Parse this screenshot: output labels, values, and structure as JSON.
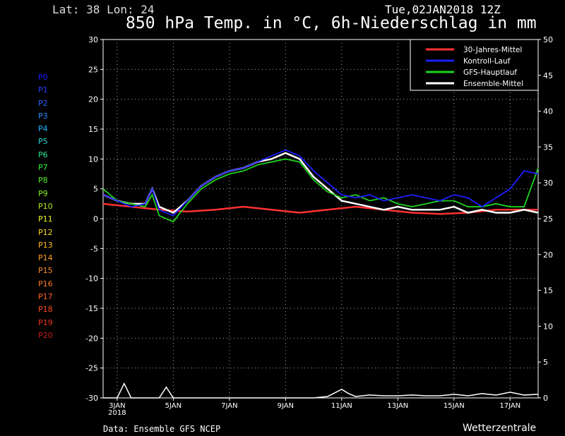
{
  "header": {
    "location": "Lat: 38 Lon: 24",
    "date": "Tue,02JAN2018 12Z",
    "title": "850 hPa Temp. in °C, 6h-Niederschlag in mm"
  },
  "members": [
    {
      "label": "P0",
      "color": "#1e1eff"
    },
    {
      "label": "P1",
      "color": "#2a3cff"
    },
    {
      "label": "P2",
      "color": "#2a64ff"
    },
    {
      "label": "P3",
      "color": "#2a8cff"
    },
    {
      "label": "P4",
      "color": "#22b4ff"
    },
    {
      "label": "P5",
      "color": "#22d2d2"
    },
    {
      "label": "P6",
      "color": "#22e68c"
    },
    {
      "label": "P7",
      "color": "#32f032"
    },
    {
      "label": "P8",
      "color": "#5af02a"
    },
    {
      "label": "P9",
      "color": "#82f01e"
    },
    {
      "label": "P10",
      "color": "#b4f01e"
    },
    {
      "label": "P11",
      "color": "#e6f01e"
    },
    {
      "label": "P12",
      "color": "#ffdc1e"
    },
    {
      "label": "P13",
      "color": "#ffbe1e"
    },
    {
      "label": "P14",
      "color": "#ffa01e"
    },
    {
      "label": "P15",
      "color": "#ff8c1e"
    },
    {
      "label": "P16",
      "color": "#ff781e"
    },
    {
      "label": "P17",
      "color": "#ff641e"
    },
    {
      "label": "P18",
      "color": "#ff4b1e"
    },
    {
      "label": "P19",
      "color": "#f0321e"
    },
    {
      "label": "P20",
      "color": "#c81e1e"
    }
  ],
  "footer": {
    "source": "Data: Ensemble GFS NCEP",
    "brand": "Wetterzentrale"
  },
  "chart_data": {
    "type": "line",
    "title": "850 hPa Temp. in °C, 6h-Niederschlag in mm",
    "xlim_days": [
      0,
      15.5
    ],
    "x_ticks": [
      {
        "day": 0.5,
        "label": "3JAN",
        "sub": "2018"
      },
      {
        "day": 2.5,
        "label": "5JAN"
      },
      {
        "day": 4.5,
        "label": "7JAN"
      },
      {
        "day": 6.5,
        "label": "9JAN"
      },
      {
        "day": 8.5,
        "label": "11JAN"
      },
      {
        "day": 10.5,
        "label": "13JAN"
      },
      {
        "day": 12.5,
        "label": "15JAN"
      },
      {
        "day": 14.5,
        "label": "17JAN"
      }
    ],
    "y_left": {
      "min": -30,
      "max": 30,
      "ticks": [
        30,
        25,
        20,
        15,
        10,
        5,
        0,
        -5,
        -10,
        -15,
        -20,
        -25,
        -30
      ]
    },
    "y_right": {
      "min": 0,
      "max": 50,
      "ticks": [
        50,
        45,
        40,
        35,
        30,
        25,
        20,
        15,
        10,
        5,
        0
      ]
    },
    "grid": true,
    "legend": {
      "placement": "top-right",
      "entries": [
        {
          "name": "30-Jahres-Mittel",
          "color": "#ff3232"
        },
        {
          "name": "Kontroll-Lauf",
          "color": "#1e1eff"
        },
        {
          "name": "GFS-Hauptlauf",
          "color": "#1ed21e"
        },
        {
          "name": "Ensemble-Mittel",
          "color": "#ffffff"
        }
      ]
    },
    "series": [
      {
        "name": "30-Jahres-Mittel",
        "color": "#ff3232",
        "x": [
          0,
          1,
          2,
          3,
          4,
          5,
          6,
          7,
          8,
          9,
          10,
          11,
          12,
          13,
          14,
          15.5
        ],
        "y": [
          2.5,
          2.0,
          1.5,
          1.2,
          1.5,
          2.0,
          1.5,
          1.0,
          1.5,
          2.0,
          1.5,
          1.0,
          0.8,
          1.0,
          1.5,
          1.5
        ]
      },
      {
        "name": "Ensemble-Mittel",
        "color": "#ffffff",
        "x": [
          0,
          0.5,
          1,
          1.5,
          1.75,
          2,
          2.5,
          3,
          3.5,
          4,
          4.5,
          5,
          5.5,
          6,
          6.5,
          7,
          7.5,
          8,
          8.5,
          9,
          9.5,
          10,
          10.5,
          11,
          11.5,
          12,
          12.5,
          13,
          13.5,
          14,
          14.5,
          15,
          15.5
        ],
        "y": [
          4,
          3.0,
          2.5,
          2.5,
          5.0,
          2.0,
          1.0,
          3.0,
          5.5,
          7.0,
          8.0,
          8.5,
          9.5,
          10.0,
          11.0,
          10.0,
          7.0,
          5.0,
          3.0,
          2.5,
          2.0,
          1.5,
          2.0,
          1.5,
          1.5,
          1.5,
          2.0,
          1.0,
          1.5,
          1.0,
          1.0,
          1.5,
          1.0
        ]
      },
      {
        "name": "GFS-Hauptlauf",
        "color": "#1ed21e",
        "x": [
          0,
          0.5,
          1,
          1.5,
          1.75,
          2,
          2.5,
          3,
          3.5,
          4,
          4.5,
          5,
          5.5,
          6,
          6.5,
          7,
          7.5,
          8,
          8.5,
          9,
          9.5,
          10,
          10.5,
          11,
          11.5,
          12,
          12.5,
          13,
          13.5,
          14,
          14.5,
          15,
          15.5
        ],
        "y": [
          5,
          3.0,
          2.5,
          2.0,
          4.0,
          0.5,
          -0.5,
          2.5,
          5.0,
          6.5,
          7.5,
          8.0,
          9.0,
          9.5,
          10.0,
          9.5,
          6.5,
          4.5,
          3.5,
          4.0,
          3.0,
          3.5,
          2.5,
          2.0,
          2.5,
          3.0,
          3.0,
          2.0,
          2.0,
          2.5,
          2.0,
          2.0,
          8.5
        ]
      },
      {
        "name": "Kontroll-Lauf",
        "color": "#1e1eff",
        "x": [
          0,
          0.5,
          1,
          1.5,
          1.75,
          2,
          2.5,
          3,
          3.5,
          4,
          4.5,
          5,
          5.5,
          6,
          6.5,
          7,
          7.5,
          8,
          8.5,
          9,
          9.5,
          10,
          10.5,
          11,
          11.5,
          12,
          12.5,
          13,
          13.5,
          14,
          14.5,
          15,
          15.5
        ],
        "y": [
          4,
          3.0,
          2.0,
          2.5,
          5.0,
          1.5,
          0.5,
          3.0,
          5.5,
          7.0,
          8.0,
          8.5,
          9.5,
          10.5,
          11.5,
          10.5,
          8.0,
          6.0,
          4.0,
          3.5,
          4.0,
          3.0,
          3.5,
          4.0,
          3.5,
          3.0,
          4.0,
          3.5,
          2.0,
          3.5,
          5.0,
          8.0,
          7.5
        ]
      }
    ],
    "precip_series": [
      {
        "name": "Ensemble-Mittel",
        "color": "#ffffff",
        "x": [
          0,
          0.5,
          0.75,
          1,
          1.5,
          2,
          2.25,
          2.5,
          3,
          4,
          5,
          6,
          7,
          7.5,
          8,
          8.5,
          8.75,
          9,
          9.5,
          10,
          10.5,
          11,
          11.5,
          12,
          12.5,
          13,
          13.5,
          14,
          14.5,
          15,
          15.5
        ],
        "y": [
          0,
          0,
          2.0,
          0,
          0,
          0,
          1.5,
          0,
          0,
          0,
          0,
          0,
          0,
          0,
          0.2,
          1.2,
          0.6,
          0.2,
          0.4,
          0.3,
          0.3,
          0.4,
          0.3,
          0.3,
          0.5,
          0.3,
          0.6,
          0.4,
          0.8,
          0.4,
          0.5
        ]
      }
    ]
  }
}
